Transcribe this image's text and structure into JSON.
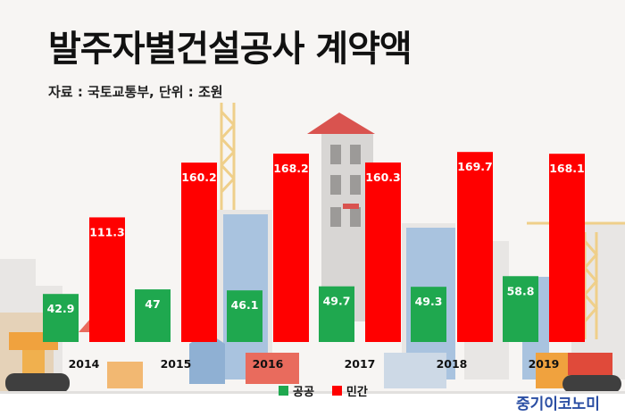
{
  "header": {
    "title": "발주자별건설공사 계약액",
    "subtitle": "자료 : 국토교통부, 단위 : 조원"
  },
  "chart_data": {
    "type": "bar",
    "title": "발주자별건설공사 계약액",
    "subtitle": "자료 : 국토교통부, 단위 : 조원",
    "categories": [
      "2014",
      "2015",
      "2016",
      "2017",
      "2018",
      "2019"
    ],
    "series": [
      {
        "name": "공공",
        "color": "#1fa84f",
        "values": [
          42.9,
          47,
          46.1,
          49.7,
          49.3,
          58.8
        ],
        "labels": [
          "42.9",
          "47",
          "46.1",
          "49.7",
          "49.3",
          "58.8"
        ]
      },
      {
        "name": "민간",
        "color": "#ff0000",
        "values": [
          111.3,
          160.2,
          168.2,
          160.3,
          169.7,
          168.1
        ],
        "labels": [
          "111.3",
          "160.2",
          "168.2",
          "160.3",
          "169.7",
          "168.1"
        ]
      }
    ],
    "ylim": [
      0,
      180
    ],
    "grid": false,
    "legend_position": "bottom-center",
    "data_labels": "inside-top"
  },
  "brand": {
    "text": "중기이코노미",
    "color": "#2a4ea3"
  }
}
